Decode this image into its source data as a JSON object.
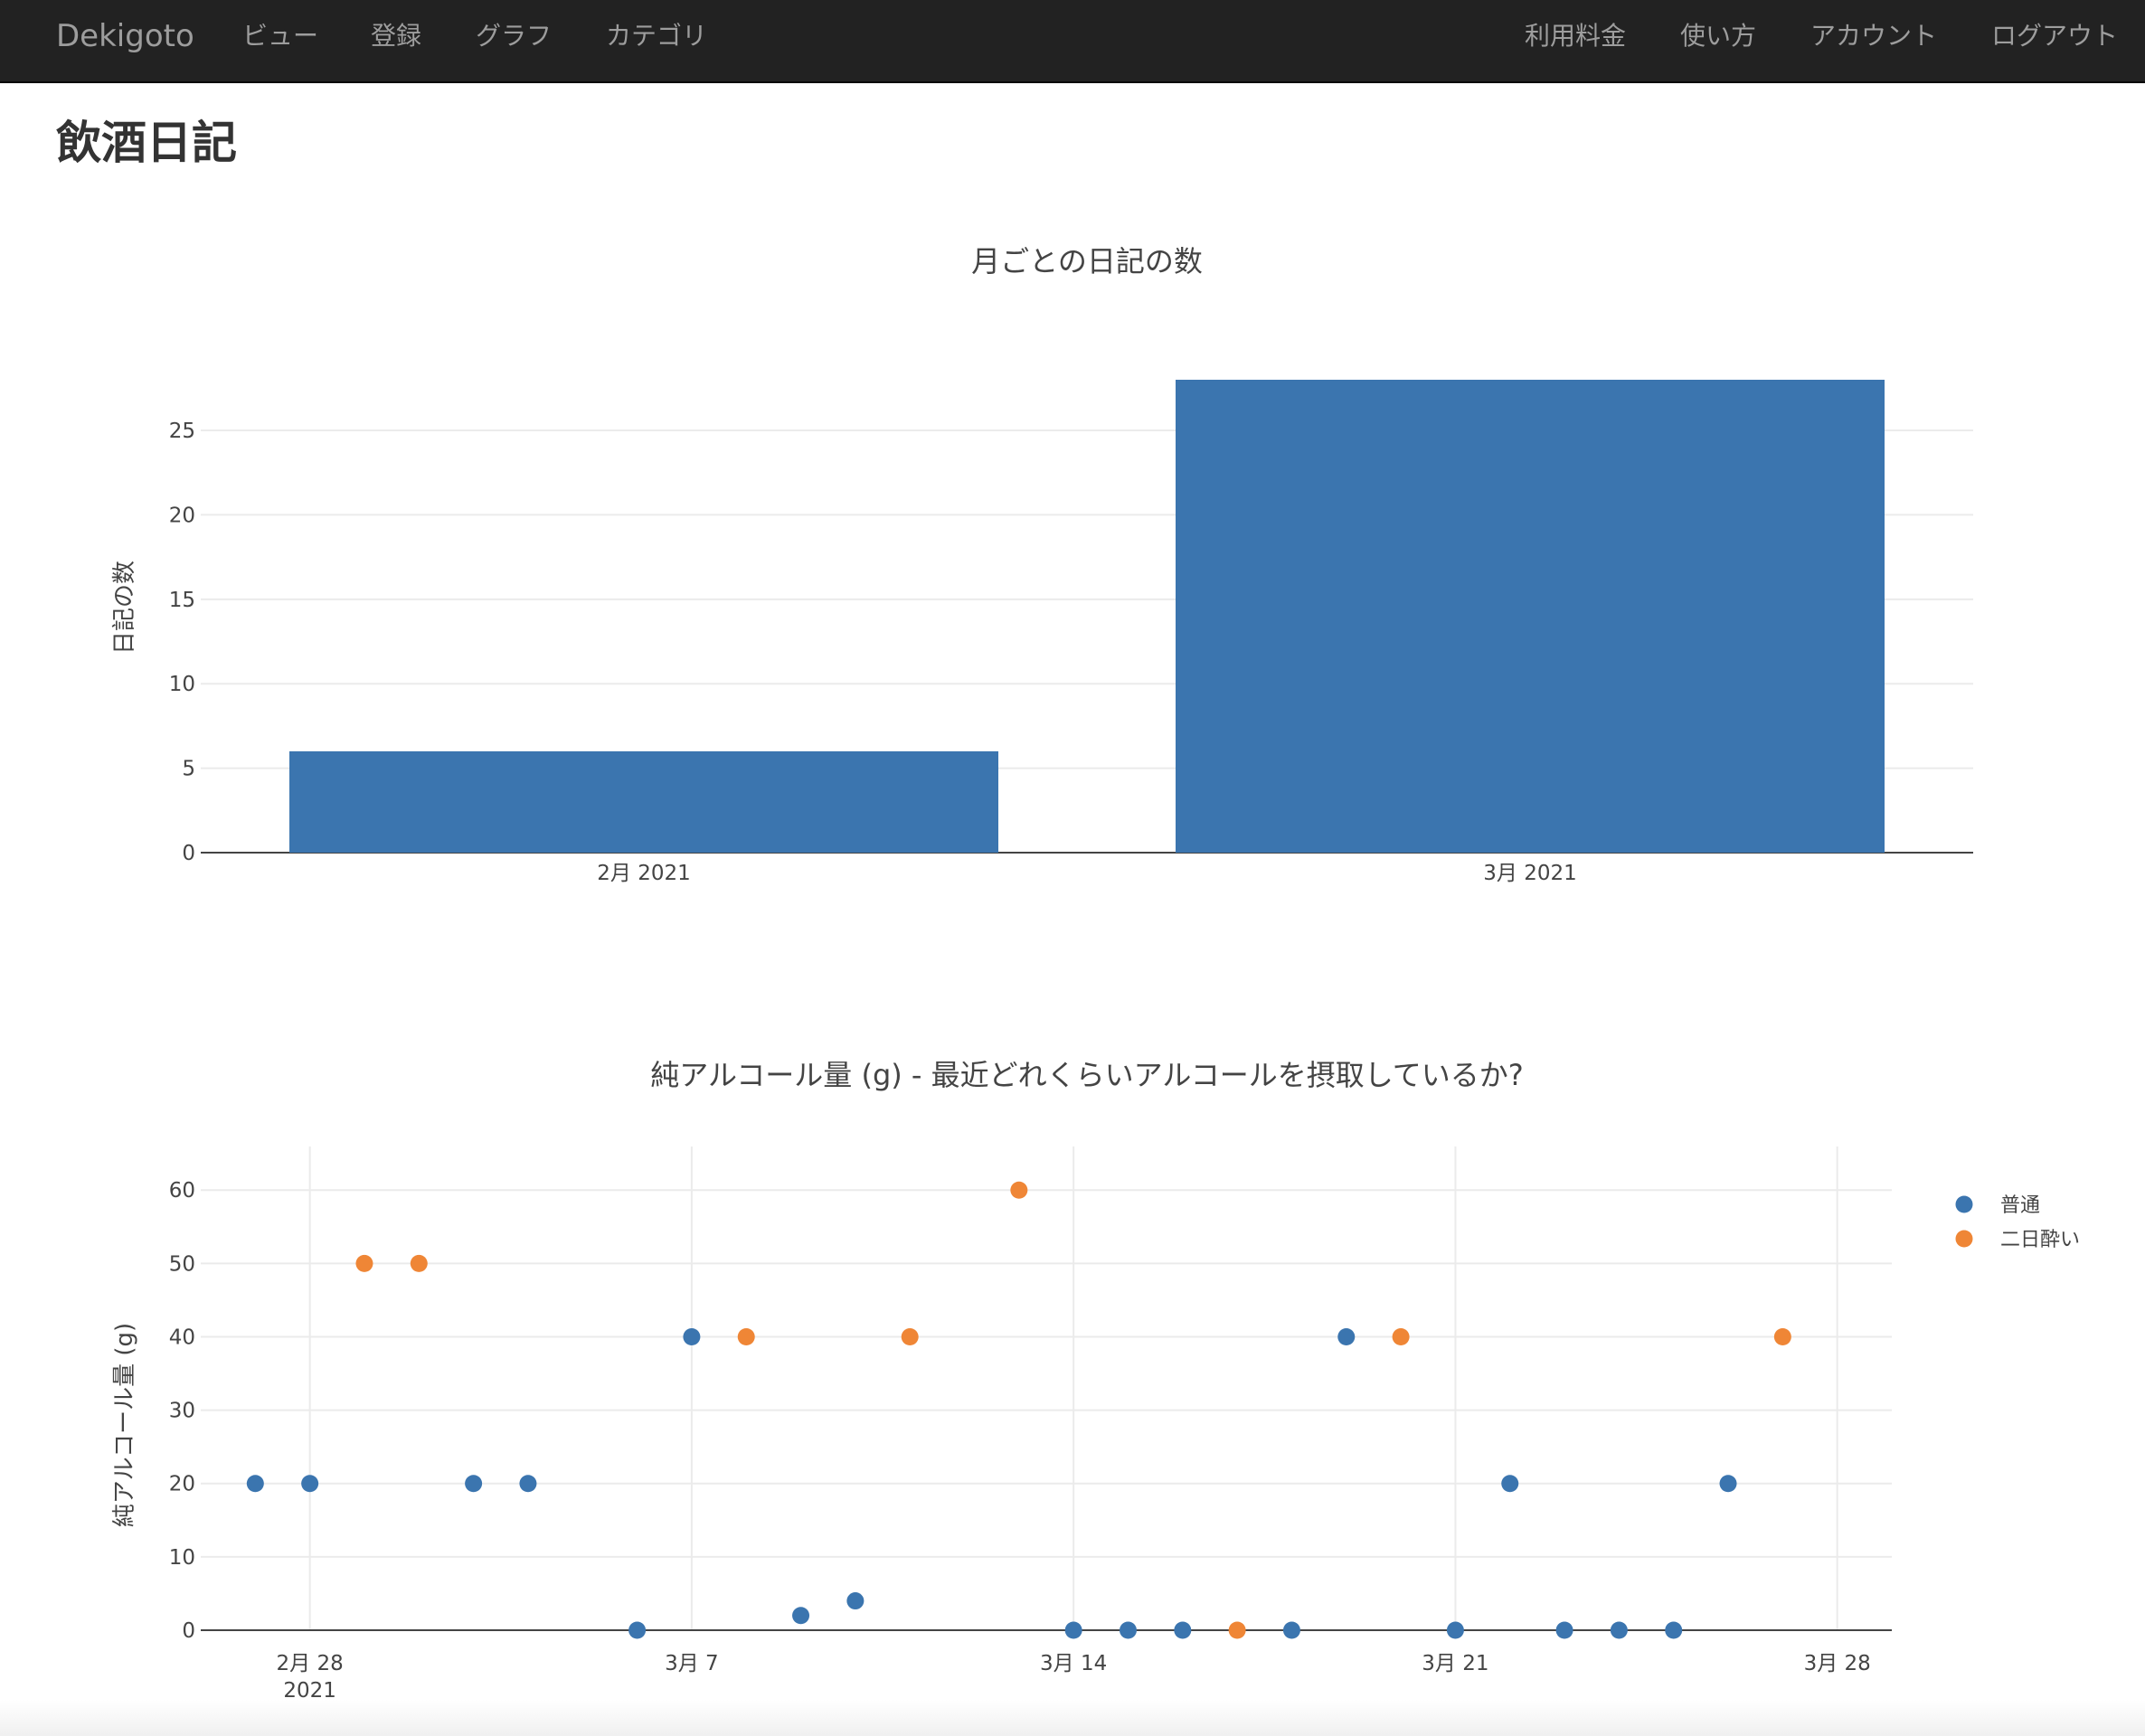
{
  "nav": {
    "brand": "Dekigoto",
    "left_items": [
      "ビュー",
      "登録",
      "グラフ",
      "カテゴリ"
    ],
    "right_items": [
      "利用料金",
      "使い方",
      "アカウント",
      "ログアウト"
    ]
  },
  "page": {
    "title": "飲酒日記"
  },
  "colors": {
    "navbar": "#222222",
    "nav_text": "#9d9d9d",
    "series_normal": "#3b75af",
    "series_hangover": "#ef8636"
  },
  "chart_data": [
    {
      "type": "bar",
      "title": "月ごとの日記の数",
      "xlabel": "",
      "ylabel": "日記の数",
      "categories": [
        "2月 2021",
        "3月 2021"
      ],
      "values": [
        6,
        28
      ],
      "ylim": [
        0,
        28
      ],
      "yticks": [
        0,
        5,
        10,
        15,
        20,
        25
      ],
      "grid": true,
      "legend": "none"
    },
    {
      "type": "scatter",
      "title": "純アルコール量 (g) - 最近どれくらいアルコールを摂取しているか?",
      "xlabel": "",
      "ylabel": "純アルコール量 (g)",
      "xlim": [
        "2021-02-26",
        "2021-03-29"
      ],
      "ylim": [
        0,
        62
      ],
      "yticks": [
        0,
        10,
        20,
        30,
        40,
        50,
        60
      ],
      "xticks": [
        {
          "x": "2021-02-28",
          "label": "2月 28",
          "sublabel": "2021"
        },
        {
          "x": "2021-03-07",
          "label": "3月 7"
        },
        {
          "x": "2021-03-14",
          "label": "3月 14"
        },
        {
          "x": "2021-03-21",
          "label": "3月 21"
        },
        {
          "x": "2021-03-28",
          "label": "3月 28"
        }
      ],
      "grid": true,
      "legend": "top-right",
      "series": [
        {
          "name": "普通",
          "color": "#3b75af",
          "points": [
            {
              "x": "2021-02-27",
              "y": 20
            },
            {
              "x": "2021-02-28",
              "y": 20
            },
            {
              "x": "2021-03-03",
              "y": 20
            },
            {
              "x": "2021-03-04",
              "y": 20
            },
            {
              "x": "2021-03-06",
              "y": 0
            },
            {
              "x": "2021-03-07",
              "y": 40
            },
            {
              "x": "2021-03-09",
              "y": 2
            },
            {
              "x": "2021-03-10",
              "y": 4
            },
            {
              "x": "2021-03-14",
              "y": 0
            },
            {
              "x": "2021-03-15",
              "y": 0
            },
            {
              "x": "2021-03-16",
              "y": 0
            },
            {
              "x": "2021-03-18",
              "y": 0
            },
            {
              "x": "2021-03-19",
              "y": 40
            },
            {
              "x": "2021-03-21",
              "y": 0
            },
            {
              "x": "2021-03-22",
              "y": 20
            },
            {
              "x": "2021-03-23",
              "y": 0
            },
            {
              "x": "2021-03-24",
              "y": 0
            },
            {
              "x": "2021-03-25",
              "y": 0
            },
            {
              "x": "2021-03-26",
              "y": 20
            }
          ]
        },
        {
          "name": "二日酔い",
          "color": "#ef8636",
          "points": [
            {
              "x": "2021-03-01",
              "y": 50
            },
            {
              "x": "2021-03-02",
              "y": 50
            },
            {
              "x": "2021-03-08",
              "y": 40
            },
            {
              "x": "2021-03-11",
              "y": 40
            },
            {
              "x": "2021-03-13",
              "y": 60
            },
            {
              "x": "2021-03-17",
              "y": 0
            },
            {
              "x": "2021-03-20",
              "y": 40
            },
            {
              "x": "2021-03-27",
              "y": 40
            }
          ]
        }
      ]
    }
  ]
}
